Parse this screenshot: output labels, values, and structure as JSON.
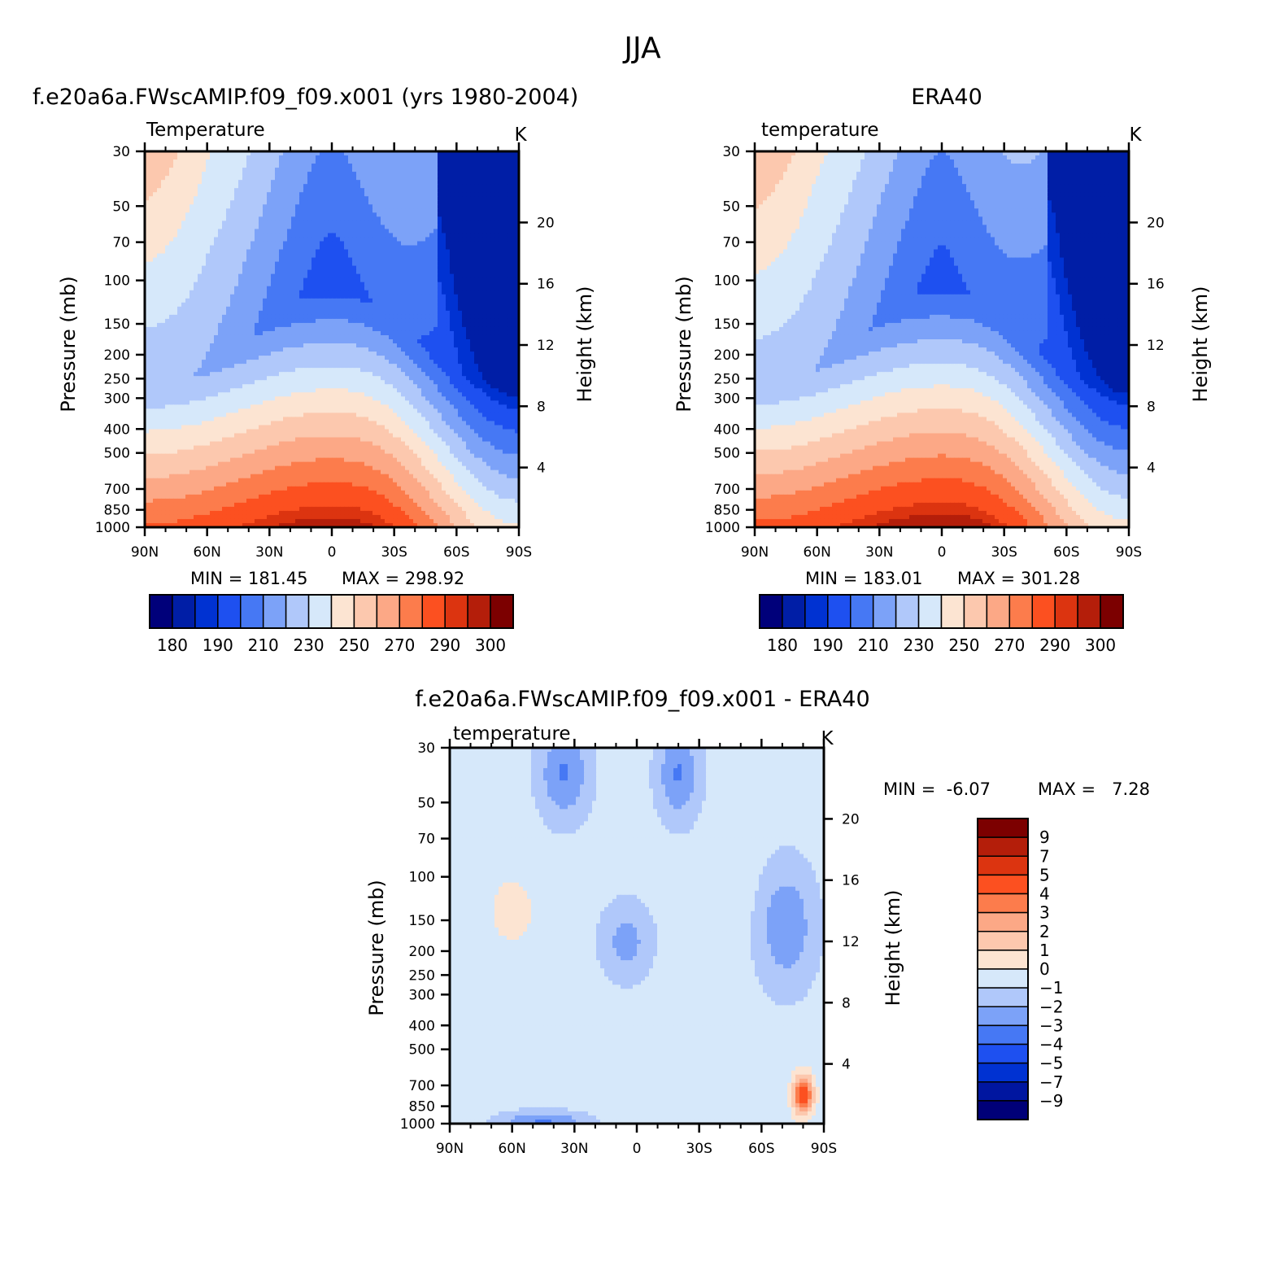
{
  "figure": {
    "title": "JJA"
  },
  "colors": {
    "temperature_palette": [
      "#00007a",
      "#001ea6",
      "#0032d2",
      "#1e50f0",
      "#4678f4",
      "#7ca2f8",
      "#b0c8fa",
      "#d6e8fa",
      "#fce4d2",
      "#fcc8ae",
      "#fca886",
      "#fc7c4c",
      "#fc5020",
      "#dc3410",
      "#b41e0a",
      "#7c0000"
    ],
    "difference_palette": [
      "#000078",
      "#0016a0",
      "#0032d2",
      "#1e50f0",
      "#4678f4",
      "#7ca2f8",
      "#b0c8fa",
      "#d6e8fa",
      "#fce4d2",
      "#fcc8ae",
      "#fca886",
      "#fc7c4c",
      "#fc5020",
      "#dc3410",
      "#b41e0a",
      "#7c0000"
    ]
  },
  "chart_data": [
    {
      "type": "heatmap",
      "panel_title": "f.e20a6a.FWscAMIP.f09_f09.x001 (yrs 1980-2004)",
      "variable": "Temperature",
      "units": "K",
      "ylabel": "Pressure (mb)",
      "ylabel_right": "Height (km)",
      "x_tick_labels": [
        "90N",
        "60N",
        "30N",
        "0",
        "30S",
        "60S",
        "90S"
      ],
      "x_ticks": [
        90,
        60,
        30,
        0,
        -30,
        -60,
        -90
      ],
      "y_ticks": [
        30,
        50,
        70,
        100,
        150,
        200,
        250,
        300,
        400,
        500,
        700,
        850,
        1000
      ],
      "height_ticks": [
        20,
        16,
        12,
        8,
        4
      ],
      "min_label": "MIN = 181.45",
      "max_label": "MAX = 298.92",
      "min": 181.45,
      "max": 298.92,
      "levels": [
        180,
        185,
        190,
        200,
        210,
        220,
        230,
        240,
        250,
        260,
        270,
        280,
        290,
        295,
        300
      ],
      "colorbar_labels": [
        "180",
        "190",
        "210",
        "230",
        "250",
        "270",
        "290",
        "300"
      ]
    },
    {
      "type": "heatmap",
      "panel_title": "ERA40",
      "variable": "temperature",
      "units": "K",
      "ylabel": "Pressure (mb)",
      "ylabel_right": "Height (km)",
      "x_tick_labels": [
        "90N",
        "60N",
        "30N",
        "0",
        "30S",
        "60S",
        "90S"
      ],
      "x_ticks": [
        90,
        60,
        30,
        0,
        -30,
        -60,
        -90
      ],
      "y_ticks": [
        30,
        50,
        70,
        100,
        150,
        200,
        250,
        300,
        400,
        500,
        700,
        850,
        1000
      ],
      "height_ticks": [
        20,
        16,
        12,
        8,
        4
      ],
      "min_label": "MIN = 183.01",
      "max_label": "MAX = 301.28",
      "min": 183.01,
      "max": 301.28,
      "levels": [
        180,
        185,
        190,
        200,
        210,
        220,
        230,
        240,
        250,
        260,
        270,
        280,
        290,
        295,
        300
      ],
      "colorbar_labels": [
        "180",
        "190",
        "210",
        "230",
        "250",
        "270",
        "290",
        "300"
      ]
    },
    {
      "type": "heatmap",
      "panel_title": "f.e20a6a.FWscAMIP.f09_f09.x001 - ERA40",
      "variable": "temperature",
      "units": "K",
      "ylabel": "Pressure (mb)",
      "ylabel_right": "Height (km)",
      "x_tick_labels": [
        "90N",
        "60N",
        "30N",
        "0",
        "30S",
        "60S",
        "90S"
      ],
      "x_ticks": [
        90,
        60,
        30,
        0,
        -30,
        -60,
        -90
      ],
      "y_ticks": [
        30,
        50,
        70,
        100,
        150,
        200,
        250,
        300,
        400,
        500,
        700,
        850,
        1000
      ],
      "height_ticks": [
        20,
        16,
        12,
        8,
        4
      ],
      "min_label": "MIN =  -6.07",
      "max_label": "MAX =   7.28",
      "min": -6.07,
      "max": 7.28,
      "levels": [
        -9,
        -7,
        -5,
        -4,
        -3,
        -2,
        -1,
        0,
        1,
        2,
        3,
        4,
        5,
        7,
        9
      ],
      "colorbar_labels": [
        "9",
        "7",
        "5",
        "4",
        "3",
        "2",
        "1",
        "0",
        "−1",
        "−2",
        "−3",
        "−4",
        "−5",
        "−7",
        "−9"
      ]
    }
  ]
}
